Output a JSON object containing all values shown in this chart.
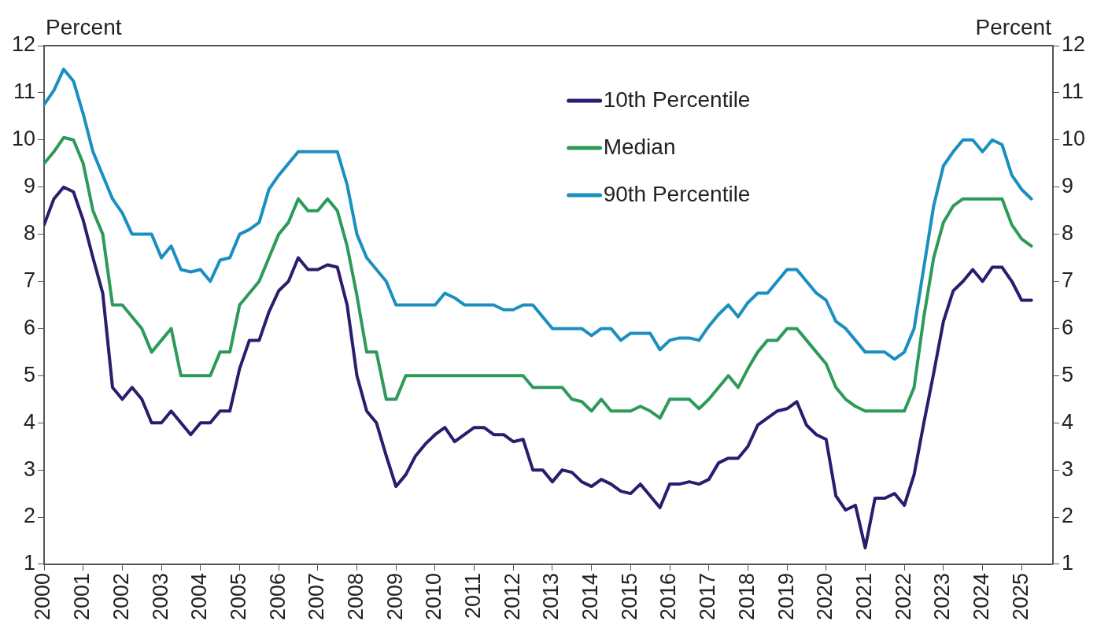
{
  "chart_data": {
    "type": "line",
    "ylabel": "Percent",
    "y2label": "Percent",
    "x": [
      2000,
      2000.25,
      2000.5,
      2000.75,
      2001,
      2001.25,
      2001.5,
      2001.75,
      2002,
      2002.25,
      2002.5,
      2002.75,
      2003,
      2003.25,
      2003.5,
      2003.75,
      2004,
      2004.25,
      2004.5,
      2004.75,
      2005,
      2005.25,
      2005.5,
      2005.75,
      2006,
      2006.25,
      2006.5,
      2006.75,
      2007,
      2007.25,
      2007.5,
      2007.75,
      2008,
      2008.25,
      2008.5,
      2008.75,
      2009,
      2009.25,
      2009.5,
      2009.75,
      2010,
      2010.25,
      2010.5,
      2010.75,
      2011,
      2011.25,
      2011.5,
      2011.75,
      2012,
      2012.25,
      2012.5,
      2012.75,
      2013,
      2013.25,
      2013.5,
      2013.75,
      2014,
      2014.25,
      2014.5,
      2014.75,
      2015,
      2015.25,
      2015.5,
      2015.75,
      2016,
      2016.25,
      2016.5,
      2016.75,
      2017,
      2017.25,
      2017.5,
      2017.75,
      2018,
      2018.25,
      2018.5,
      2018.75,
      2019,
      2019.25,
      2019.5,
      2019.75,
      2020,
      2020.25,
      2020.5,
      2020.75,
      2021,
      2021.25,
      2021.5,
      2021.75,
      2022,
      2022.25,
      2022.5,
      2022.75,
      2023,
      2023.25,
      2023.5,
      2023.75,
      2024,
      2024.25,
      2024.5,
      2024.75,
      2025,
      2025.25
    ],
    "series": [
      {
        "name": "10th Percentile",
        "color": "#2a1d6e",
        "values": [
          8.2,
          8.75,
          9.0,
          8.9,
          8.3,
          7.5,
          6.75,
          4.75,
          4.5,
          4.75,
          4.5,
          4.0,
          4.0,
          4.25,
          4.0,
          3.75,
          4.0,
          4.0,
          4.25,
          4.25,
          5.15,
          5.75,
          5.75,
          6.35,
          6.8,
          7.0,
          7.5,
          7.25,
          7.25,
          7.35,
          7.3,
          6.5,
          5.0,
          4.25,
          4.0,
          3.3,
          2.65,
          2.9,
          3.3,
          3.55,
          3.75,
          3.9,
          3.6,
          3.75,
          3.9,
          3.9,
          3.75,
          3.75,
          3.6,
          3.65,
          3.0,
          3.0,
          2.75,
          3.0,
          2.95,
          2.75,
          2.65,
          2.8,
          2.7,
          2.55,
          2.5,
          2.7,
          2.45,
          2.2,
          2.7,
          2.7,
          2.75,
          2.7,
          2.8,
          3.15,
          3.25,
          3.25,
          3.5,
          3.95,
          4.1,
          4.25,
          4.3,
          4.45,
          3.95,
          3.75,
          3.65,
          2.45,
          2.15,
          2.25,
          1.35,
          2.4,
          2.4,
          2.5,
          2.25,
          2.9,
          4.0,
          5.05,
          6.15,
          6.8,
          7.0,
          7.25,
          7.0,
          7.3,
          7.3,
          7.0,
          6.6,
          6.6
        ]
      },
      {
        "name": "Median",
        "color": "#2e9a5a",
        "values": [
          9.5,
          9.75,
          10.05,
          10.0,
          9.5,
          8.5,
          8.0,
          6.5,
          6.5,
          6.25,
          6.0,
          5.5,
          5.75,
          6.0,
          5.0,
          5.0,
          5.0,
          5.0,
          5.5,
          5.5,
          6.5,
          6.75,
          7.0,
          7.5,
          8.0,
          8.25,
          8.75,
          8.5,
          8.5,
          8.75,
          8.5,
          7.75,
          6.7,
          5.5,
          5.5,
          4.5,
          4.5,
          5.0,
          5.0,
          5.0,
          5.0,
          5.0,
          5.0,
          5.0,
          5.0,
          5.0,
          5.0,
          5.0,
          5.0,
          5.0,
          4.75,
          4.75,
          4.75,
          4.75,
          4.5,
          4.45,
          4.25,
          4.5,
          4.25,
          4.25,
          4.25,
          4.35,
          4.25,
          4.1,
          4.5,
          4.5,
          4.5,
          4.3,
          4.5,
          4.75,
          5.0,
          4.75,
          5.15,
          5.5,
          5.75,
          5.75,
          6.0,
          6.0,
          5.75,
          5.5,
          5.25,
          4.75,
          4.5,
          4.35,
          4.25,
          4.25,
          4.25,
          4.25,
          4.25,
          4.75,
          6.25,
          7.5,
          8.25,
          8.6,
          8.75,
          8.75,
          8.75,
          8.75,
          8.75,
          8.2,
          7.9,
          7.75
        ]
      },
      {
        "name": "90th Percentile",
        "color": "#1b8fc0",
        "values": [
          10.75,
          11.05,
          11.5,
          11.25,
          10.55,
          9.75,
          9.25,
          8.75,
          8.45,
          8.0,
          8.0,
          8.0,
          7.5,
          7.75,
          7.25,
          7.2,
          7.25,
          7.0,
          7.45,
          7.5,
          8.0,
          8.1,
          8.25,
          8.95,
          9.25,
          9.5,
          9.75,
          9.75,
          9.75,
          9.75,
          9.75,
          9.05,
          8.0,
          7.5,
          7.25,
          7.0,
          6.5,
          6.5,
          6.5,
          6.5,
          6.5,
          6.75,
          6.65,
          6.5,
          6.5,
          6.5,
          6.5,
          6.4,
          6.4,
          6.5,
          6.5,
          6.25,
          6.0,
          6.0,
          6.0,
          6.0,
          5.85,
          6.0,
          6.0,
          5.75,
          5.9,
          5.9,
          5.9,
          5.55,
          5.75,
          5.8,
          5.8,
          5.75,
          6.05,
          6.3,
          6.5,
          6.25,
          6.55,
          6.75,
          6.75,
          7.0,
          7.25,
          7.25,
          7.0,
          6.75,
          6.6,
          6.15,
          6.0,
          5.75,
          5.5,
          5.5,
          5.5,
          5.35,
          5.5,
          6.0,
          7.3,
          8.6,
          9.45,
          9.75,
          10.0,
          10.0,
          9.75,
          10.0,
          9.9,
          9.25,
          8.95,
          8.75
        ]
      }
    ],
    "xlim": [
      2000,
      2025.8
    ],
    "xticks": [
      2000,
      2001,
      2002,
      2003,
      2004,
      2005,
      2006,
      2007,
      2008,
      2009,
      2010,
      2011,
      2012,
      2013,
      2014,
      2015,
      2016,
      2017,
      2018,
      2019,
      2020,
      2021,
      2022,
      2023,
      2024,
      2025
    ],
    "ylim": [
      1,
      12
    ],
    "yticks": [
      1,
      2,
      3,
      4,
      5,
      6,
      7,
      8,
      9,
      10,
      11,
      12
    ],
    "y2lim": [
      1,
      12
    ],
    "y2ticks": [
      1,
      2,
      3,
      4,
      5,
      6,
      7,
      8,
      9,
      10,
      11,
      12
    ],
    "grid": false,
    "legend": "top",
    "marker": "none",
    "line_style": "solid"
  }
}
